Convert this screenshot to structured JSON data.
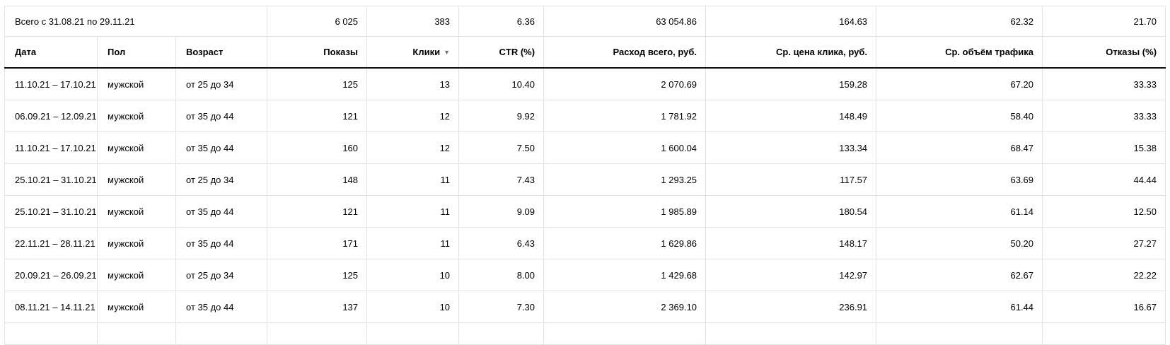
{
  "colors": {
    "background": "#ffffff",
    "text": "#000000",
    "grid_border": "#e2e2e2",
    "header_rule": "#0d0d0d",
    "sort_arrow": "#737373"
  },
  "table": {
    "totals": {
      "label": "Всего с 31.08.21 по 29.11.21",
      "values": [
        "6 025",
        "383",
        "6.36",
        "63 054.86",
        "164.63",
        "62.32",
        "21.70"
      ]
    },
    "sort": {
      "column": "Клики",
      "direction": "desc",
      "icon": "▼"
    },
    "columns": [
      {
        "label": "Дата"
      },
      {
        "label": "Пол"
      },
      {
        "label": "Возраст"
      },
      {
        "label": "Показы"
      },
      {
        "label": "Клики"
      },
      {
        "label": "CTR (%)"
      },
      {
        "label": "Расход всего, руб."
      },
      {
        "label": "Ср. цена клика, руб."
      },
      {
        "label": "Ср. объём трафика"
      },
      {
        "label": "Отказы (%)"
      }
    ],
    "cell_names": [
      "cell-date",
      "cell-gender",
      "cell-age",
      "cell-impressions",
      "cell-clicks",
      "cell-ctr",
      "cell-total-cost",
      "cell-avg-cpc",
      "cell-avg-traffic-volume",
      "cell-bounce-rate"
    ],
    "rows": [
      {
        "cells": [
          "11.10.21 – 17.10.21",
          "мужской",
          "от 25 до 34",
          "125",
          "13",
          "10.40",
          "2 070.69",
          "159.28",
          "67.20",
          "33.33"
        ]
      },
      {
        "cells": [
          "06.09.21 – 12.09.21",
          "мужской",
          "от 35 до 44",
          "121",
          "12",
          "9.92",
          "1 781.92",
          "148.49",
          "58.40",
          "33.33"
        ]
      },
      {
        "cells": [
          "11.10.21 – 17.10.21",
          "мужской",
          "от 35 до 44",
          "160",
          "12",
          "7.50",
          "1 600.04",
          "133.34",
          "68.47",
          "15.38"
        ]
      },
      {
        "cells": [
          "25.10.21 – 31.10.21",
          "мужской",
          "от 25 до 34",
          "148",
          "11",
          "7.43",
          "1 293.25",
          "117.57",
          "63.69",
          "44.44"
        ]
      },
      {
        "cells": [
          "25.10.21 – 31.10.21",
          "мужской",
          "от 35 до 44",
          "121",
          "11",
          "9.09",
          "1 985.89",
          "180.54",
          "61.14",
          "12.50"
        ]
      },
      {
        "cells": [
          "22.11.21 – 28.11.21",
          "мужской",
          "от 35 до 44",
          "171",
          "11",
          "6.43",
          "1 629.86",
          "148.17",
          "50.20",
          "27.27"
        ]
      },
      {
        "cells": [
          "20.09.21 – 26.09.21",
          "мужской",
          "от 25 до 34",
          "125",
          "10",
          "8.00",
          "1 429.68",
          "142.97",
          "62.67",
          "22.22"
        ]
      },
      {
        "cells": [
          "08.11.21 – 14.11.21",
          "мужской",
          "от 35 до 44",
          "137",
          "10",
          "7.30",
          "2 369.10",
          "236.91",
          "61.44",
          "16.67"
        ]
      }
    ]
  }
}
